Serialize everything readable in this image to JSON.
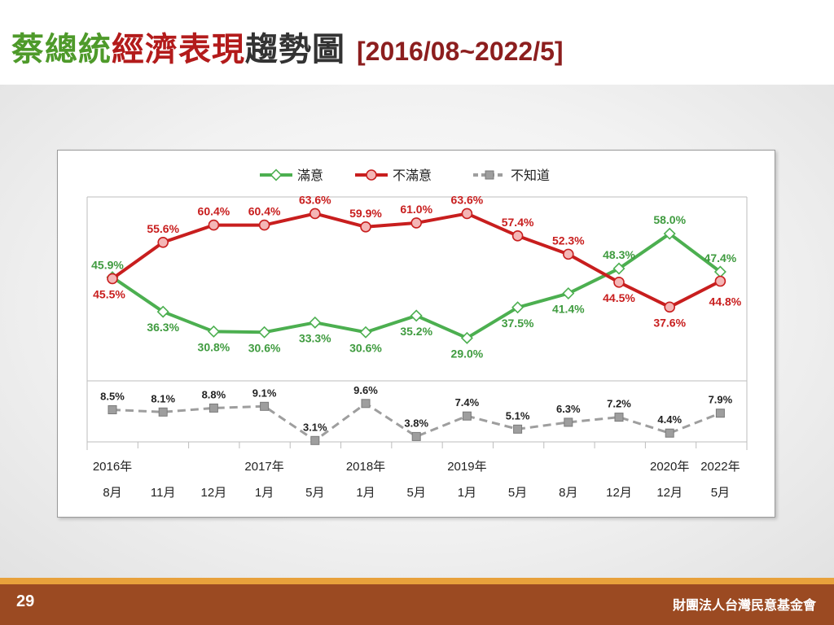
{
  "slide": {
    "title_parts": [
      {
        "text": "蔡總統",
        "color": "#4e9a2a"
      },
      {
        "text": "經濟表現",
        "color": "#b31b1b"
      },
      {
        "text": "趨勢圖",
        "color": "#333333"
      }
    ],
    "date_range": "[2016/08~2022/5]",
    "page_number": "29",
    "organization": "財團法人台灣民意基金會"
  },
  "chart_data": {
    "type": "line",
    "categories": [
      "8月",
      "11月",
      "12月",
      "1月",
      "5月",
      "1月",
      "5月",
      "1月",
      "5月",
      "8月",
      "12月",
      "12月",
      "5月"
    ],
    "year_labels": [
      "2016年",
      "",
      "",
      "2017年",
      "",
      "2018年",
      "",
      "2019年",
      "",
      "",
      "",
      "2020年",
      "2022年"
    ],
    "series": [
      {
        "name": "滿意",
        "color": "#4caf50",
        "values": [
          45.9,
          36.3,
          30.8,
          30.6,
          33.3,
          30.6,
          35.2,
          29.0,
          37.5,
          41.4,
          48.3,
          58.0,
          47.4
        ],
        "labels": [
          "45.9%",
          "36.3%",
          "30.8%",
          "30.6%",
          "33.3%",
          "30.6%",
          "35.2%",
          "29.0%",
          "37.5%",
          "41.4%",
          "48.3%",
          "58.0%",
          "47.4%"
        ]
      },
      {
        "name": "不滿意",
        "color": "#c81e1e",
        "values": [
          45.5,
          55.6,
          60.4,
          60.4,
          63.6,
          59.9,
          61.0,
          63.6,
          57.4,
          52.3,
          44.5,
          37.6,
          44.8
        ],
        "labels": [
          "45.5%",
          "55.6%",
          "60.4%",
          "60.4%",
          "63.6%",
          "59.9%",
          "61.0%",
          "63.6%",
          "57.4%",
          "52.3%",
          "44.5%",
          "37.6%",
          "44.8%"
        ]
      },
      {
        "name": "不知道",
        "color": "#9e9e9e",
        "values": [
          8.5,
          8.1,
          8.8,
          9.1,
          3.1,
          9.6,
          3.8,
          7.4,
          5.1,
          6.3,
          7.2,
          4.4,
          7.9
        ],
        "labels": [
          "8.5%",
          "8.1%",
          "8.8%",
          "9.1%",
          "3.1%",
          "9.6%",
          "3.8%",
          "7.4%",
          "5.1%",
          "6.3%",
          "7.2%",
          "4.4%",
          "7.9%"
        ]
      }
    ],
    "legend_position": "top-center",
    "grid": false
  }
}
